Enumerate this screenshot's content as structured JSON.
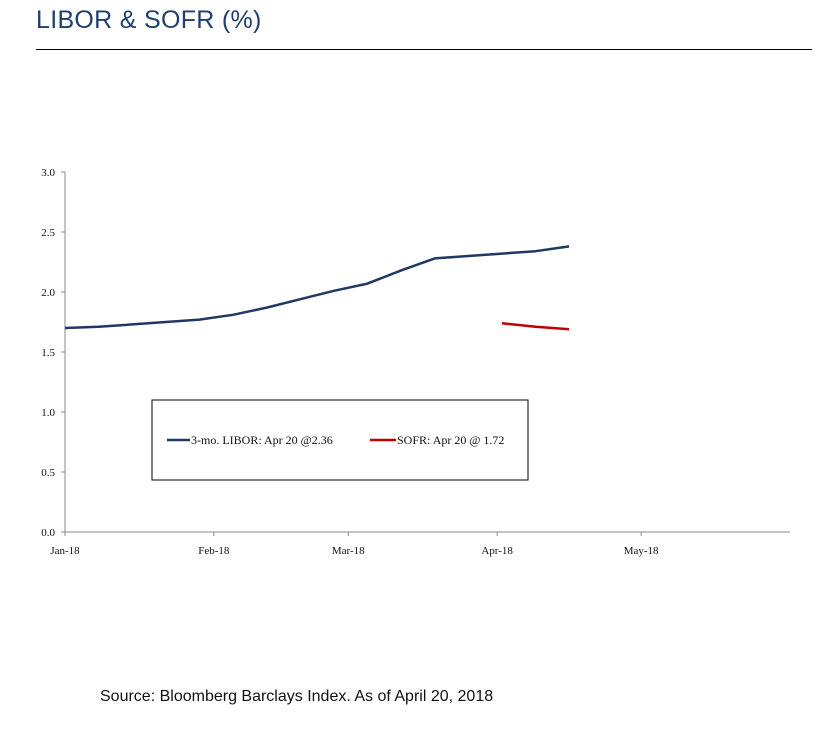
{
  "page": {
    "title": "LIBOR & SOFR (%)",
    "source": "Source: Bloomberg Barclays Index. As of April 20, 2018"
  },
  "chart_data": {
    "type": "line",
    "x_ticks": [
      "Jan-18",
      "Feb-18",
      "Mar-18",
      "Apr-18",
      "May-18"
    ],
    "x_range": [
      "2018-01-01",
      "2018-06-01"
    ],
    "ylim": [
      0.0,
      3.0
    ],
    "y_ticks": [
      "0.0",
      "0.5",
      "1.0",
      "1.5",
      "2.0",
      "2.5",
      "3.0"
    ],
    "grid": false,
    "legend": "inside, lower-center",
    "series": [
      {
        "name": "3-mo. LIBOR: Apr 20 @2.36",
        "color": "#1f3864",
        "points": [
          [
            "2018-01-01",
            1.7
          ],
          [
            "2018-01-08",
            1.71
          ],
          [
            "2018-01-15",
            1.73
          ],
          [
            "2018-01-22",
            1.75
          ],
          [
            "2018-01-29",
            1.77
          ],
          [
            "2018-02-05",
            1.81
          ],
          [
            "2018-02-12",
            1.87
          ],
          [
            "2018-02-19",
            1.94
          ],
          [
            "2018-02-26",
            2.01
          ],
          [
            "2018-03-05",
            2.07
          ],
          [
            "2018-03-12",
            2.18
          ],
          [
            "2018-03-19",
            2.28
          ],
          [
            "2018-03-26",
            2.3
          ],
          [
            "2018-04-02",
            2.32
          ],
          [
            "2018-04-09",
            2.34
          ],
          [
            "2018-04-16",
            2.38
          ]
        ]
      },
      {
        "name": "SOFR: Apr 20 @ 1.72",
        "color": "#c00000",
        "points": [
          [
            "2018-04-02",
            1.74
          ],
          [
            "2018-04-09",
            1.71
          ],
          [
            "2018-04-16",
            1.69
          ]
        ]
      }
    ]
  }
}
